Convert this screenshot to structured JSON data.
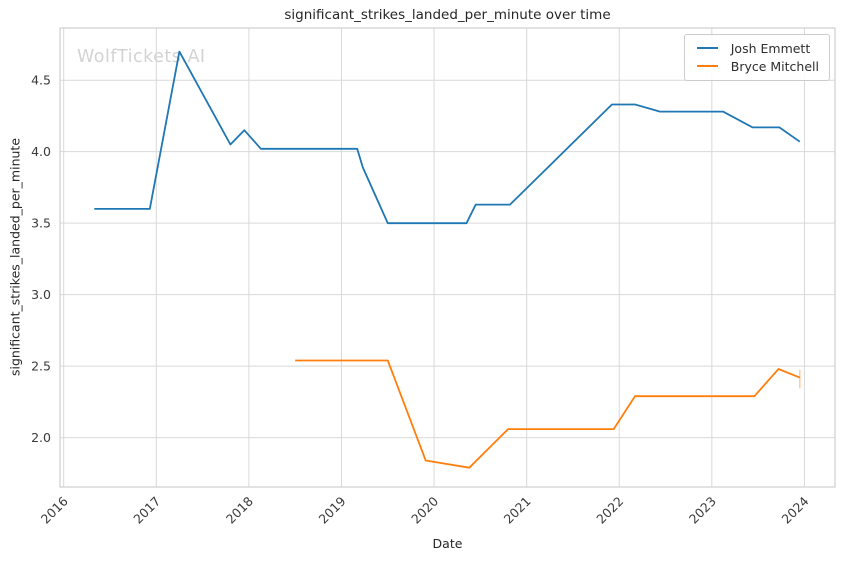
{
  "figure": {
    "watermark": "WolfTickets.AI"
  },
  "style": {
    "background": "#ffffff",
    "grid_color": "#d9d9d9",
    "spine_color": "#cfcfcf",
    "text_color": "#262626",
    "tick_color": "#3a3a3a",
    "watermark_color": "#d3d3d3",
    "legend_border_color": "#cccccc"
  },
  "chart_data": {
    "type": "line",
    "title": "significant_strikes_landed_per_minute over time",
    "xlabel": "Date",
    "ylabel": "significant_strikes_landed_per_minute",
    "grid": true,
    "legend_position": "upper right",
    "xlim": [
      2015.96,
      2024.33
    ],
    "ylim": [
      1.655,
      4.865
    ],
    "xticks": [
      2016,
      2017,
      2018,
      2019,
      2020,
      2021,
      2022,
      2023,
      2024
    ],
    "yticks": [
      2.0,
      2.5,
      3.0,
      3.5,
      4.0,
      4.5
    ],
    "series": [
      {
        "name": "Josh Emmett",
        "color": "#1f77b4",
        "x": [
          2016.33,
          2016.93,
          2017.25,
          2017.8,
          2017.95,
          2018.13,
          2019.17,
          2019.23,
          2019.5,
          2020.35,
          2020.45,
          2020.82,
          2021.92,
          2022.17,
          2022.44,
          2023.12,
          2023.44,
          2023.73,
          2023.95
        ],
        "y": [
          3.6,
          3.6,
          4.7,
          4.05,
          4.15,
          4.02,
          4.02,
          3.89,
          3.5,
          3.5,
          3.63,
          3.63,
          4.33,
          4.33,
          4.28,
          4.28,
          4.17,
          4.17,
          4.07
        ]
      },
      {
        "name": "Bryce Mitchell",
        "color": "#ff7f0e",
        "x": [
          2018.5,
          2019.5,
          2019.91,
          2020.38,
          2020.8,
          2021.94,
          2022.17,
          2023.46,
          2023.72,
          2023.95
        ],
        "y": [
          2.54,
          2.54,
          1.84,
          1.79,
          2.06,
          2.06,
          2.29,
          2.29,
          2.48,
          2.42
        ]
      }
    ],
    "annotations": {
      "end_tick": {
        "x": 2023.95,
        "y1": 2.475,
        "y2": 2.345,
        "color": "#ff7f0e",
        "opacity": 0.4
      }
    }
  }
}
